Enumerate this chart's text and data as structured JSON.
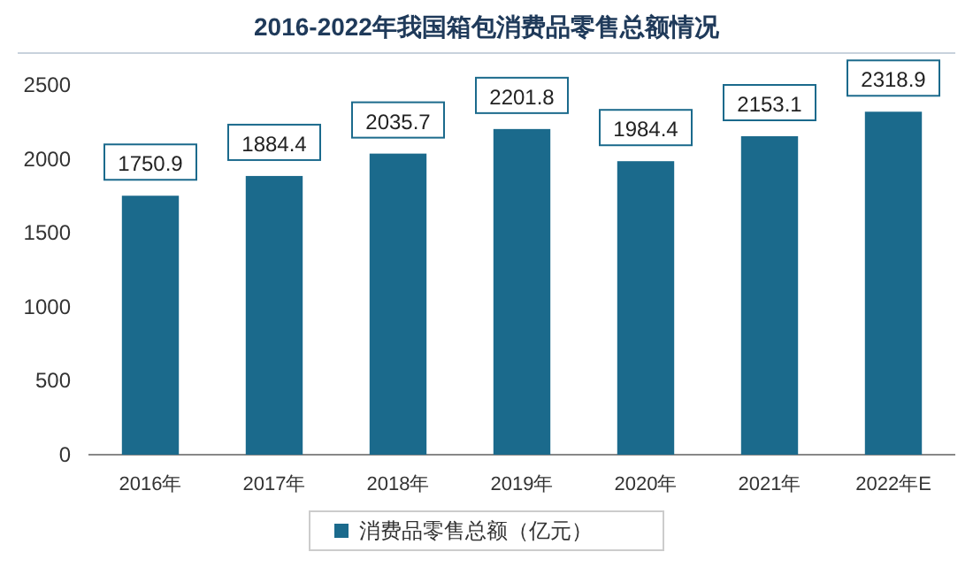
{
  "chart_data": {
    "type": "bar",
    "title": "2016-2022年我国箱包消费品零售总额情况",
    "categories": [
      "2016年",
      "2017年",
      "2018年",
      "2019年",
      "2020年",
      "2021年",
      "2022年E"
    ],
    "series": [
      {
        "name": "消费品零售总额（亿元）",
        "color": "#1b6a8c",
        "values": [
          1750.9,
          1884.4,
          2035.7,
          2201.8,
          1984.4,
          2153.1,
          2318.9
        ]
      }
    ],
    "ylim": [
      0,
      2500
    ],
    "yticks": [
      0,
      500,
      1000,
      1500,
      2000,
      2500
    ],
    "data_labels": true,
    "legend": "bottom",
    "grid": false
  }
}
